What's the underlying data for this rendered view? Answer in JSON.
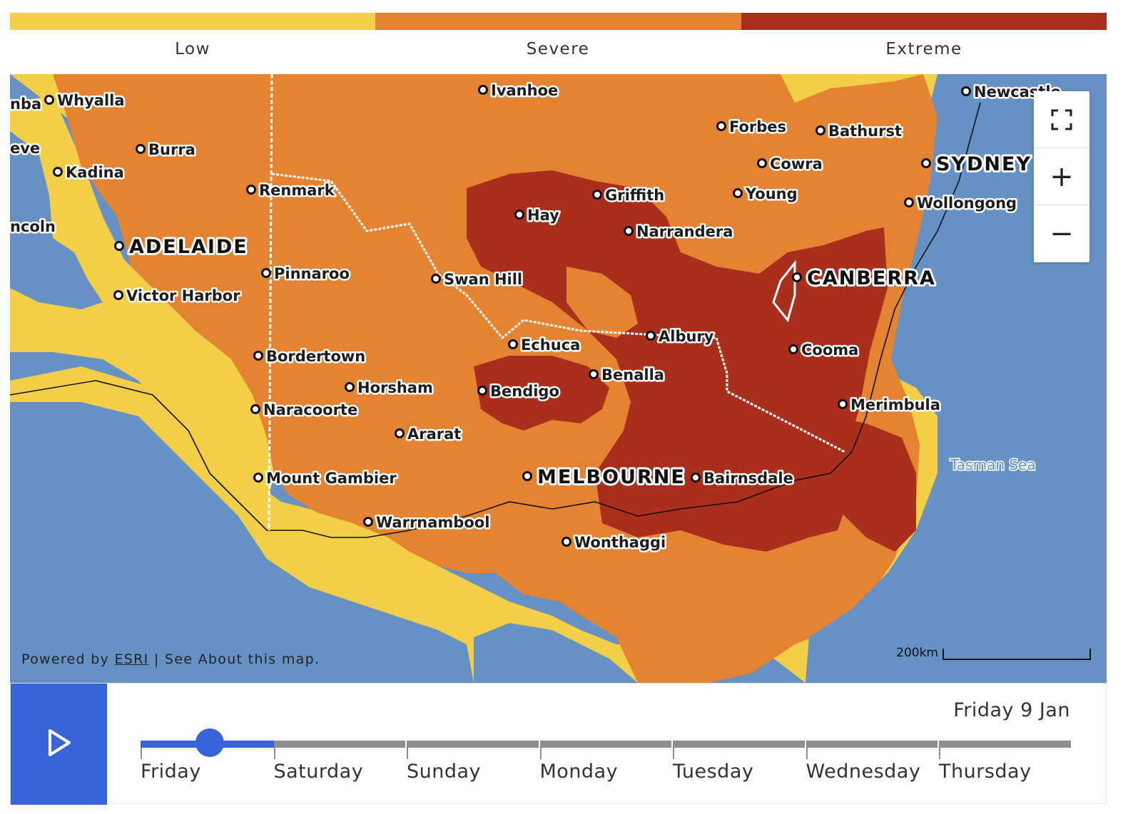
{
  "legend": {
    "items": [
      {
        "label": "Low",
        "color": "#f2cf47"
      },
      {
        "label": "Severe",
        "color": "#e48332"
      },
      {
        "label": "Extreme",
        "color": "#a92f1c"
      }
    ]
  },
  "map": {
    "colors": {
      "sea": "#6591c4",
      "low": "#f2cf47",
      "severe": "#e48332",
      "extreme": "#a92f1c"
    },
    "towns": [
      "Whyalla",
      "Burra",
      "Kadina",
      "Renmark",
      "Pinnaroo",
      "Victor Harbor",
      "Bordertown",
      "Horsham",
      "Naracoorte",
      "Ararat",
      "Mount Gambier",
      "Warrnambool",
      "Ivanhoe",
      "Swan Hill",
      "Echuca",
      "Bendigo",
      "Benalla",
      "Albury",
      "Hay",
      "Griffith",
      "Narrandera",
      "Forbes",
      "Bathurst",
      "Cowra",
      "Young",
      "Wollongong",
      "Newcastle",
      "Cooma",
      "Merimbula",
      "Bairnsdale",
      "Wonthaggi"
    ],
    "partial_labels": [
      "nba",
      "eve",
      "ncoln"
    ],
    "cities": [
      "ADELAIDE",
      "MELBOURNE",
      "CANBERRA",
      "SYDNEY"
    ],
    "sea_label": "Tasman Sea",
    "zoom": {
      "fullscreen_icon": "fullscreen-icon",
      "zoom_in": "+",
      "zoom_out": "−"
    },
    "attribution": {
      "prefix": "Powered by ",
      "link": "ESRI",
      "suffix": " | See About this map."
    },
    "scale": "200km"
  },
  "timeline": {
    "current_date": "Friday 9 Jan",
    "play_icon": "play-icon",
    "days": [
      "Friday",
      "Saturday",
      "Sunday",
      "Monday",
      "Tuesday",
      "Wednesday",
      "Thursday"
    ],
    "selected_day": "Friday",
    "progress_fraction": 0.52
  }
}
